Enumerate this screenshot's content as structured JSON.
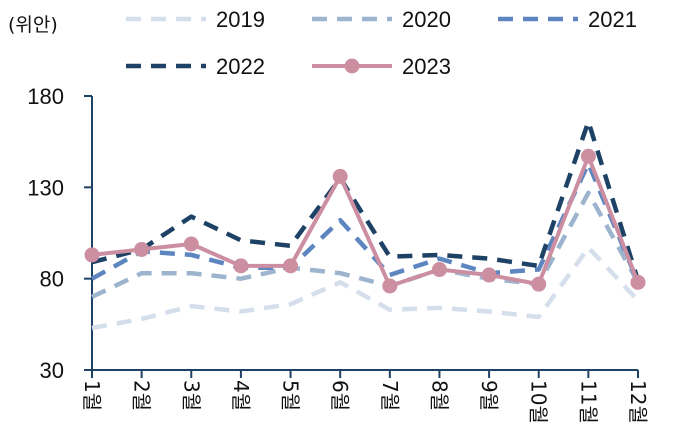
{
  "chart_data": {
    "type": "line",
    "unit_label": "(위안)",
    "categories": [
      "1월",
      "2월",
      "3월",
      "4월",
      "5월",
      "6월",
      "7월",
      "8월",
      "9월",
      "10월",
      "11월",
      "12월"
    ],
    "ylim": [
      30,
      180
    ],
    "yticks": [
      30,
      80,
      130,
      180
    ],
    "grid": false,
    "legend_position": "top",
    "series": [
      {
        "name": "2019",
        "color": "#d5dfec",
        "dash": "dashed",
        "values": [
          53,
          58,
          65,
          62,
          66,
          78,
          63,
          64,
          62,
          59,
          97,
          68
        ]
      },
      {
        "name": "2020",
        "color": "#9db4cf",
        "dash": "dashed",
        "values": [
          70,
          83,
          83,
          80,
          86,
          83,
          76,
          85,
          80,
          77,
          127,
          78
        ]
      },
      {
        "name": "2021",
        "color": "#5d86c1",
        "dash": "dashed",
        "values": [
          80,
          95,
          93,
          86,
          86,
          112,
          82,
          91,
          83,
          85,
          143,
          78
        ]
      },
      {
        "name": "2022",
        "color": "#1d4266",
        "dash": "dashed",
        "values": [
          89,
          96,
          114,
          101,
          98,
          135,
          92,
          93,
          91,
          87,
          166,
          79
        ]
      },
      {
        "name": "2023",
        "color": "#cc8fa1",
        "dash": "solid",
        "markers": true,
        "values": [
          93,
          96,
          99,
          87,
          87,
          136,
          76,
          85,
          82,
          77,
          147,
          78
        ]
      }
    ]
  }
}
